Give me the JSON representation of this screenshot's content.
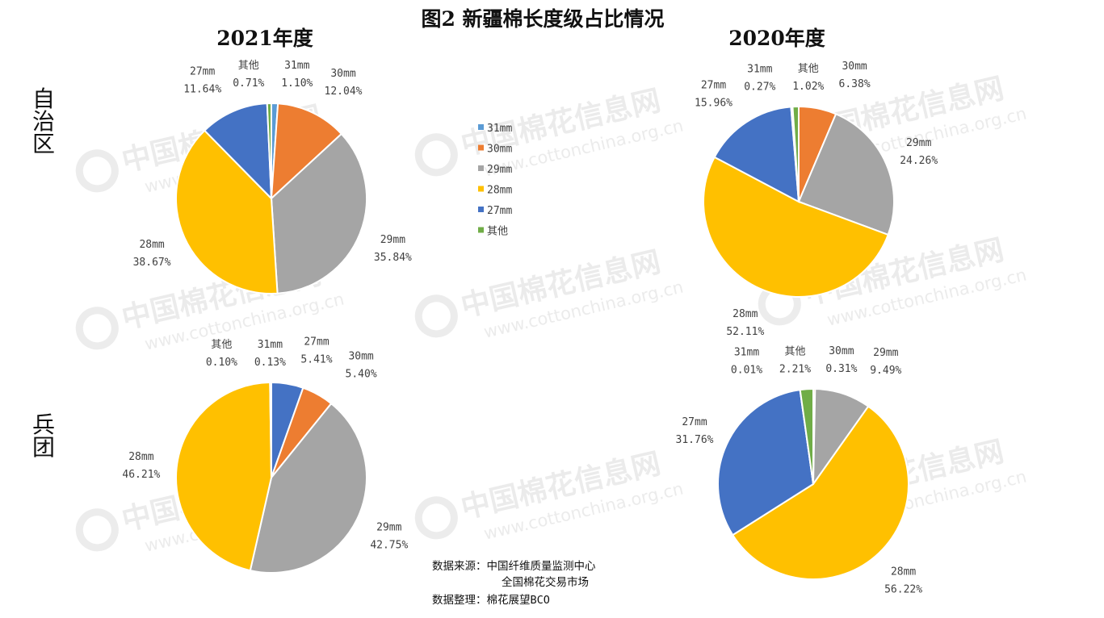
{
  "title": "图2 新疆棉长度级占比情况",
  "column_titles": [
    "2021年度",
    "2020年度"
  ],
  "row_labels": [
    "自治区",
    "兵团"
  ],
  "watermark": {
    "line1": "中国棉花信息网",
    "line2": "www.cottonchina.org.cn"
  },
  "source": {
    "line1": "数据来源：中国纤维质量监测中心",
    "line2": "全国棉花交易市场",
    "line3": "数据整理：棉花展望BCO"
  },
  "legend": [
    {
      "name": "31mm",
      "color": "#5B9BD5"
    },
    {
      "name": "30mm",
      "color": "#ED7D31"
    },
    {
      "name": "29mm",
      "color": "#A5A5A5"
    },
    {
      "name": "28mm",
      "color": "#FFC000"
    },
    {
      "name": "27mm",
      "color": "#4472C4"
    },
    {
      "name": "其他",
      "color": "#70AD47"
    }
  ],
  "chart_data": [
    {
      "type": "pie",
      "title": "2021年度",
      "group": "自治区",
      "categories": [
        "31mm",
        "30mm",
        "29mm",
        "28mm",
        "27mm",
        "其他"
      ],
      "values": [
        1.1,
        12.04,
        35.84,
        38.67,
        11.64,
        0.71
      ],
      "labels": [
        "1.10%",
        "12.04%",
        "35.84%",
        "38.67%",
        "11.64%",
        "0.71%"
      ]
    },
    {
      "type": "pie",
      "title": "2020年度",
      "group": "自治区",
      "categories": [
        "30mm",
        "29mm",
        "28mm",
        "27mm",
        "31mm",
        "其他"
      ],
      "values": [
        6.38,
        24.26,
        52.11,
        15.96,
        0.27,
        1.02
      ],
      "labels": [
        "6.38%",
        "24.26%",
        "52.11%",
        "15.96%",
        "0.27%",
        "1.02%"
      ]
    },
    {
      "type": "pie",
      "title": "2021年度",
      "group": "兵团",
      "categories": [
        "27mm",
        "30mm",
        "29mm",
        "28mm",
        "其他",
        "31mm"
      ],
      "values": [
        5.41,
        5.4,
        42.75,
        46.21,
        0.1,
        0.13
      ],
      "labels": [
        "5.41%",
        "5.40%",
        "42.75%",
        "46.21%",
        "0.10%",
        "0.13%"
      ]
    },
    {
      "type": "pie",
      "title": "2020年度",
      "group": "兵团",
      "categories": [
        "30mm",
        "29mm",
        "28mm",
        "27mm",
        "31mm",
        "其他"
      ],
      "values": [
        0.31,
        9.49,
        56.22,
        31.76,
        0.01,
        2.21
      ],
      "labels": [
        "0.31%",
        "9.49%",
        "56.22%",
        "31.76%",
        "0.01%",
        "2.21%"
      ]
    }
  ]
}
